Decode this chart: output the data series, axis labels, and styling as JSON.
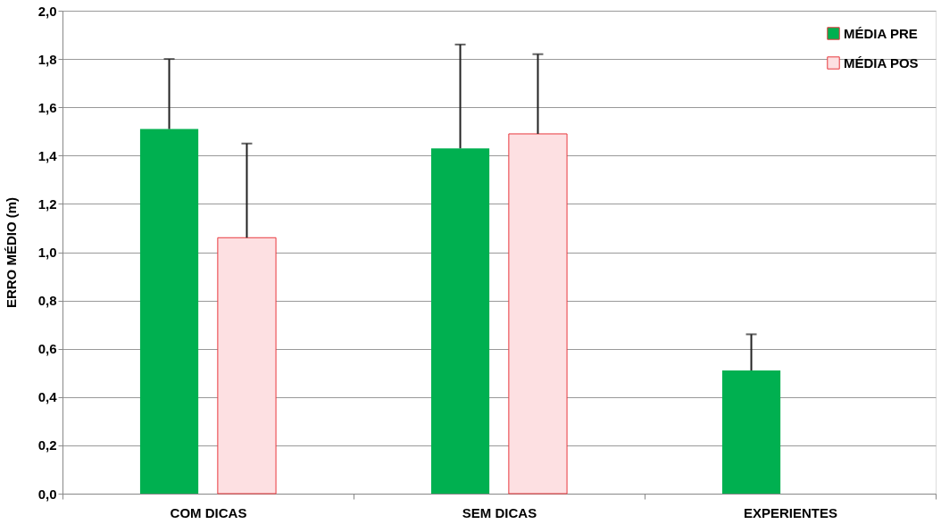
{
  "chart_data": {
    "type": "bar",
    "ylabel": "ERRO MÉDIO (m)",
    "categories": [
      "COM DICAS",
      "SEM DICAS",
      "EXPERIENTES"
    ],
    "series": [
      {
        "name": "MÉDIA PRE",
        "color": "#00b050",
        "values": [
          1.51,
          1.43,
          0.51
        ],
        "errors": [
          [
            1.51,
            1.8
          ],
          [
            1.43,
            1.86
          ],
          [
            0.51,
            0.66
          ]
        ]
      },
      {
        "name": "MÉDIA POS",
        "color": "#fde0e2",
        "values": [
          1.06,
          1.49,
          null
        ],
        "errors": [
          [
            1.06,
            1.45
          ],
          [
            1.49,
            1.82
          ],
          null
        ]
      }
    ],
    "ylim": [
      0,
      2.0
    ],
    "yticks": [
      {
        "value": 0,
        "label": "0,0"
      },
      {
        "value": 0.2,
        "label": "0,2"
      },
      {
        "value": 0.4,
        "label": "0,4"
      },
      {
        "value": 0.6,
        "label": "0,6"
      },
      {
        "value": 0.8,
        "label": "0,8"
      },
      {
        "value": 1.0,
        "label": "1,0"
      },
      {
        "value": 1.2,
        "label": "1,2"
      },
      {
        "value": 1.4,
        "label": "1,4"
      },
      {
        "value": 1.6,
        "label": "1,6"
      },
      {
        "value": 1.8,
        "label": "1,8"
      },
      {
        "value": 2.0,
        "label": "2,0"
      }
    ],
    "grid": "y",
    "legend": "top right"
  }
}
